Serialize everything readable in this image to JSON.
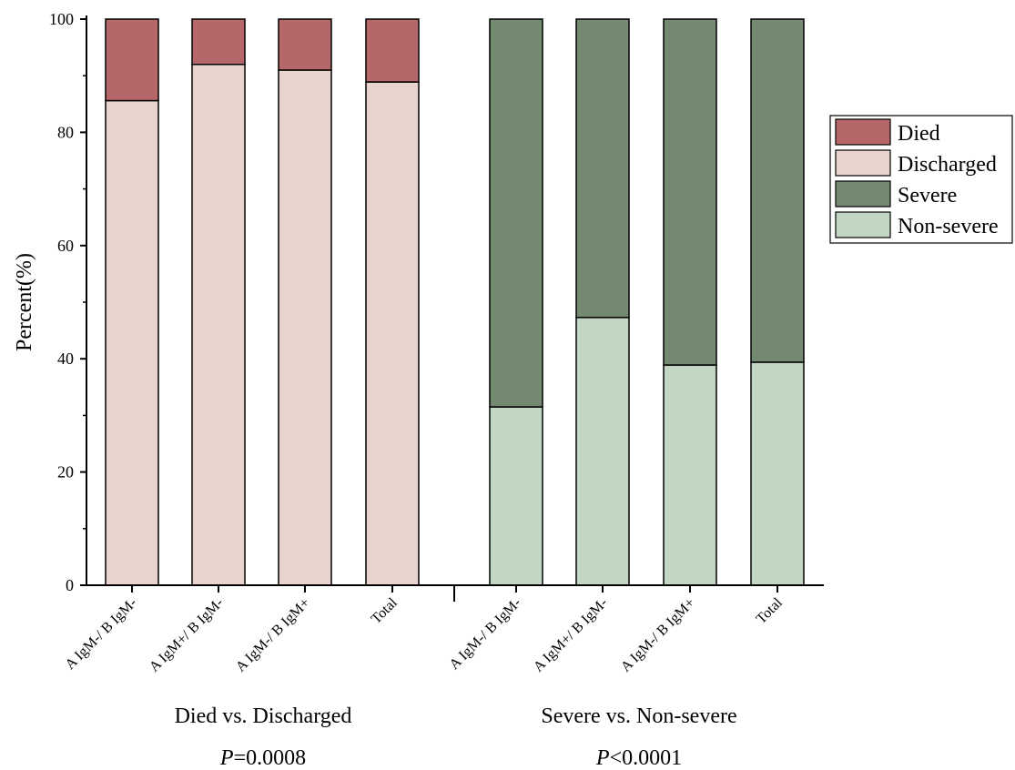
{
  "chart_data": {
    "type": "bar",
    "stacked": true,
    "ylabel": "Percent(%)",
    "ylim": [
      0,
      100
    ],
    "yticks": [
      "0",
      "20",
      "40",
      "60",
      "80",
      "100"
    ],
    "grid": false,
    "legend_position": "right",
    "groups": [
      {
        "label": "Died vs. Discharged",
        "p_prefix": "P",
        "p_value": "=0.0008",
        "categories": [
          "A IgM-/ B IgM-",
          "A IgM+/ B IgM-",
          "A IgM-/ B IgM+",
          "Total"
        ],
        "series": [
          {
            "name": "Discharged",
            "values": [
              85.6,
              92.0,
              91.0,
              88.9
            ]
          },
          {
            "name": "Died",
            "values": [
              14.4,
              8.0,
              9.0,
              11.1
            ]
          }
        ]
      },
      {
        "label": "Severe vs. Non-severe",
        "p_prefix": "P",
        "p_value": "<0.0001",
        "categories": [
          "A IgM-/ B IgM-",
          "A IgM+/ B IgM-",
          "A IgM-/ B IgM+",
          "Total"
        ],
        "series": [
          {
            "name": "Non-severe",
            "values": [
              31.5,
              47.3,
              38.9,
              39.4
            ]
          },
          {
            "name": "Severe",
            "values": [
              68.5,
              52.7,
              61.1,
              60.6
            ]
          }
        ]
      }
    ],
    "legend": [
      {
        "name": "Died",
        "color": "#b5676a"
      },
      {
        "name": "Discharged",
        "color": "#e8d3cd"
      },
      {
        "name": "Severe",
        "color": "#738a70"
      },
      {
        "name": "Non-severe",
        "color": "#c3d6c3"
      }
    ],
    "colors": {
      "Died": "#b5676a",
      "Discharged": "#e8d3cd",
      "Severe": "#738a70",
      "Non-severe": "#c3d6c3"
    }
  }
}
